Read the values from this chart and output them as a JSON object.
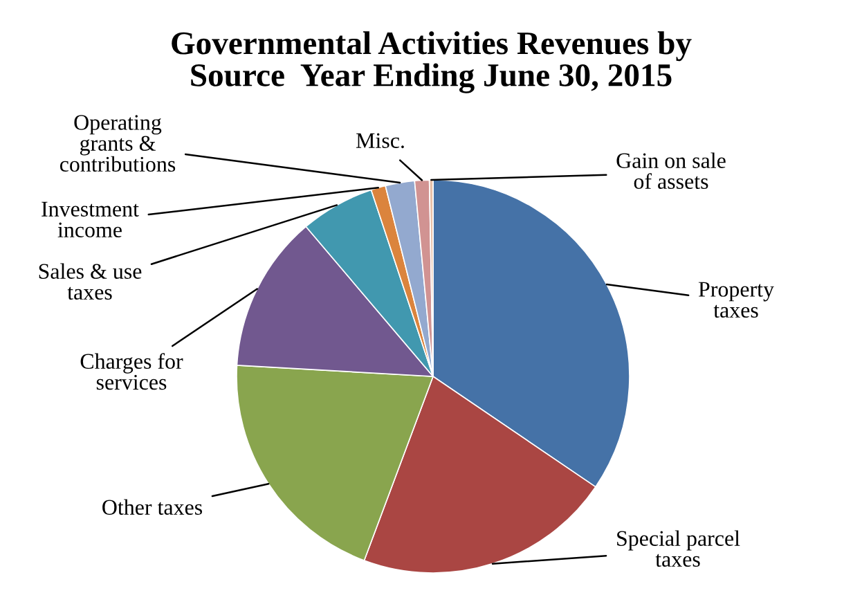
{
  "chart_data": {
    "type": "pie",
    "title": "Governmental Activities Revenues by\nSource  Year Ending June 30, 2015",
    "categories": [
      "Property\ntaxes",
      "Special parcel\ntaxes",
      "Other taxes",
      "Charges for\nservices",
      "Sales & use\ntaxes",
      "Investment\nincome",
      "Operating\ngrants &\ncontributions",
      "Misc.",
      "Gain on sale\nof assets"
    ],
    "values": [
      34.5,
      21.2,
      20.2,
      12.9,
      6.1,
      1.2,
      2.4,
      1.2,
      0.3
    ],
    "colors": [
      "#4572a7",
      "#aa4643",
      "#89a54e",
      "#71588f",
      "#4198af",
      "#db843d",
      "#93a9cf",
      "#d19392",
      "#e8c0a8"
    ],
    "legend": false
  }
}
